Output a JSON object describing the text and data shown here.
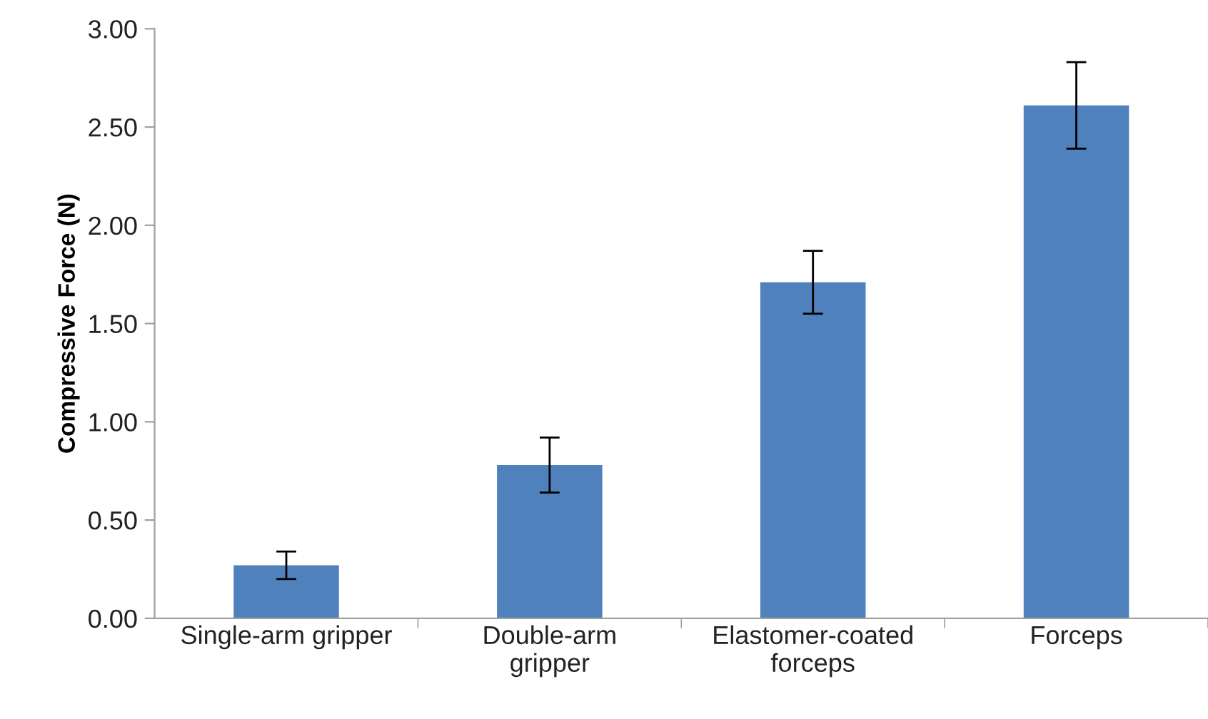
{
  "chart_data": {
    "type": "bar",
    "ylabel": "Compressive Force (N)",
    "categories": [
      "Single-arm gripper",
      "Double-arm\ngripper",
      "Elastomer-coated\nforceps",
      "Forceps"
    ],
    "values": [
      0.27,
      0.78,
      1.71,
      2.61
    ],
    "errors": [
      0.07,
      0.14,
      0.16,
      0.22
    ],
    "color": "#4f81bd",
    "ylim": [
      0,
      3
    ],
    "yticks": [
      {
        "value": 0,
        "label": "0.00"
      },
      {
        "value": 0.5,
        "label": "0.50"
      },
      {
        "value": 1,
        "label": "1.00"
      },
      {
        "value": 1.5,
        "label": "1.50"
      },
      {
        "value": 2,
        "label": "2.00"
      },
      {
        "value": 2.5,
        "label": "2.50"
      },
      {
        "value": 3,
        "label": "3.00"
      }
    ],
    "grid": false,
    "legend": false
  }
}
